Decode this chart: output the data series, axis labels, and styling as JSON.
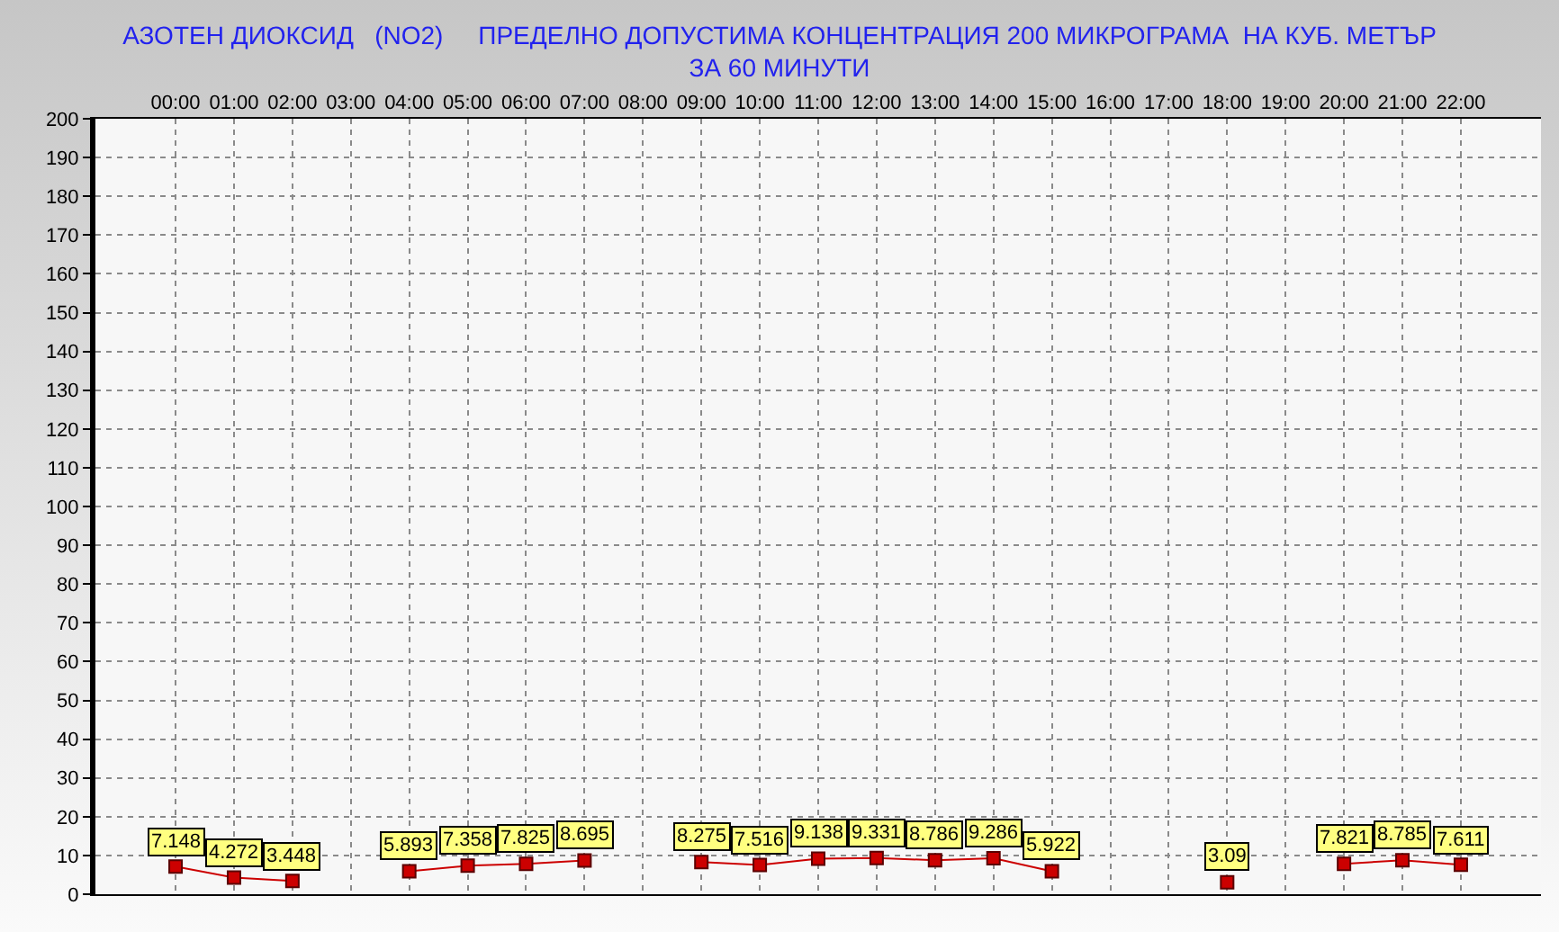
{
  "chart_data": {
    "type": "line",
    "title": "АЗОТЕН ДИОКСИД   (NO2)     ПРЕДЕЛНО ДОПУСТИМА КОНЦЕНТРАЦИЯ 200 МИКРОГРАМА  НА КУБ. МЕТЪР\nЗА 60 МИНУТИ",
    "categories": [
      "00:00",
      "01:00",
      "02:00",
      "03:00",
      "04:00",
      "05:00",
      "06:00",
      "07:00",
      "08:00",
      "09:00",
      "10:00",
      "11:00",
      "12:00",
      "13:00",
      "14:00",
      "15:00",
      "16:00",
      "17:00",
      "18:00",
      "19:00",
      "20:00",
      "21:00",
      "22:00"
    ],
    "series": [
      {
        "color": "#cc0000",
        "values": [
          7.148,
          4.272,
          3.448,
          null,
          5.893,
          7.358,
          7.825,
          8.695,
          null,
          8.275,
          7.516,
          9.138,
          9.331,
          8.786,
          9.286,
          5.922,
          null,
          null,
          3.09,
          null,
          7.821,
          8.785,
          7.611
        ]
      }
    ],
    "ylim": [
      0,
      200
    ],
    "yticks": [
      0,
      10,
      20,
      30,
      40,
      50,
      60,
      70,
      80,
      90,
      100,
      110,
      120,
      130,
      140,
      150,
      160,
      170,
      180,
      190,
      200
    ],
    "grid": true,
    "marker": "square",
    "line_style": "solid",
    "data_labels": true
  }
}
